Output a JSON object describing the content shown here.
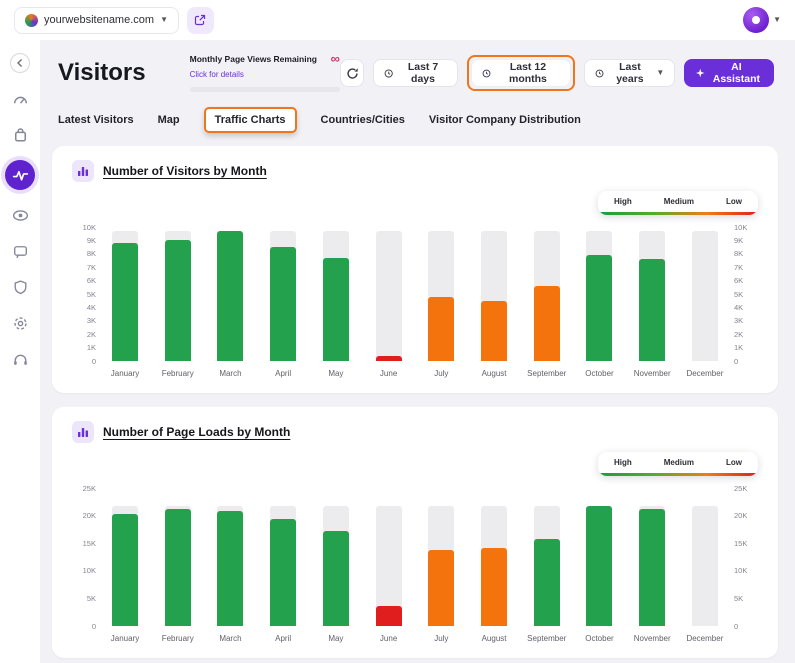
{
  "topbar": {
    "site_name": "yourwebsitename.com"
  },
  "header": {
    "title": "Visitors",
    "quota_title": "Monthly Page Views Remaining",
    "quota_link": "Click for details",
    "quota_infinity": "∞",
    "btn_last7": "Last 7 days",
    "btn_last12": "Last 12 months",
    "btn_lastyears": "Last years",
    "btn_ai": "AI Assistant"
  },
  "tabs": [
    "Latest Visitors",
    "Map",
    "Traffic Charts",
    "Countries/Cities",
    "Visitor Company Distribution"
  ],
  "legend": {
    "high": "High",
    "medium": "Medium",
    "low": "Low"
  },
  "colors": {
    "high": "#23A14D",
    "medium": "#F4730C",
    "low": "#E01E1E",
    "track": "#ECECEE",
    "accent": "#6A2FD8",
    "annotation": "#F0761E",
    "infinity": "#D6336C"
  },
  "chart_data": [
    {
      "type": "bar",
      "title": "Number of Visitors by Month",
      "xlabel": "",
      "ylabel": "",
      "categories": [
        "January",
        "February",
        "March",
        "April",
        "May",
        "June",
        "July",
        "August",
        "September",
        "October",
        "November",
        "December"
      ],
      "values": [
        8800,
        9000,
        9700,
        8500,
        7700,
        400,
        4800,
        4500,
        5600,
        7900,
        7600,
        0
      ],
      "levels": [
        "high",
        "high",
        "high",
        "high",
        "high",
        "low",
        "medium",
        "medium",
        "medium",
        "high",
        "high",
        "none"
      ],
      "ylim": [
        0,
        10000
      ],
      "tick_values": [
        0,
        1000,
        2000,
        3000,
        4000,
        5000,
        6000,
        7000,
        8000,
        9000,
        10000
      ],
      "tick_labels": [
        "0",
        "1K",
        "2K",
        "3K",
        "4K",
        "5K",
        "6K",
        "7K",
        "8K",
        "9K",
        "10K"
      ],
      "legend_position": "top-right",
      "grid": false
    },
    {
      "type": "bar",
      "title": "Number of Page Loads by Month",
      "xlabel": "",
      "ylabel": "",
      "categories": [
        "January",
        "February",
        "March",
        "April",
        "May",
        "June",
        "July",
        "August",
        "September",
        "October",
        "November",
        "December"
      ],
      "values": [
        20300,
        21200,
        20800,
        19400,
        17200,
        3700,
        13700,
        14200,
        15700,
        21800,
        21200,
        0
      ],
      "levels": [
        "high",
        "high",
        "high",
        "high",
        "high",
        "low",
        "medium",
        "medium",
        "high",
        "high",
        "high",
        "none"
      ],
      "ylim": [
        0,
        25000
      ],
      "tick_values": [
        0,
        5000,
        10000,
        15000,
        20000,
        25000
      ],
      "tick_labels": [
        "0",
        "5K",
        "10K",
        "15K",
        "20K",
        "25K"
      ],
      "legend_position": "top-right",
      "grid": false
    }
  ]
}
